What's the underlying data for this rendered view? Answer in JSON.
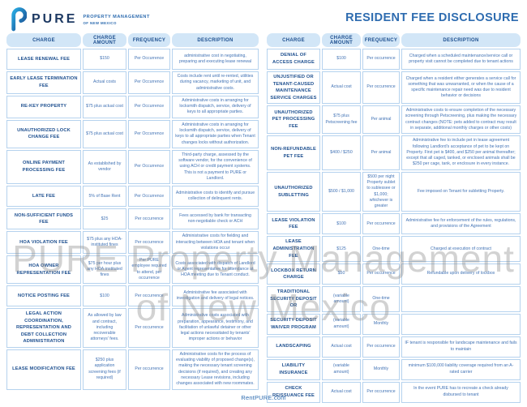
{
  "brand": {
    "name": "PURE",
    "tagline_line1": "PROPERTY MANAGEMENT",
    "tagline_line2": "OF NEW MEXICO"
  },
  "title": "RESIDENT FEE DISCLOSURE",
  "watermark": {
    "line1": "PURE Property Management",
    "line2": "of New Mexico"
  },
  "footer": {
    "url": "RentPURE.com"
  },
  "colors": {
    "accent_blue": "#2e6cb0",
    "dark_blue": "#1d4f8f",
    "navy": "#1e3a63",
    "pill_background": "#d2e6f7",
    "cell_border": "#b5d2ee",
    "body_text_blue": "#4273b5",
    "watermark_gray": "#8a8a8a"
  },
  "columns": [
    "CHARGE",
    "CHARGE AMOUNT",
    "FREQUENCY",
    "DESCRIPTION"
  ],
  "left_table": {
    "rows": [
      {
        "charge": "LEASE RENEWAL FEE",
        "amount": "$150",
        "frequency": "Per Occurrence",
        "description": "administrative cost in negotiating, preparing and executing lease renewal"
      },
      {
        "charge": "EARLY LEASE TERMINATION FEE",
        "amount": "Actual costs",
        "frequency": "Per Occurrence",
        "description": "Costs include rent until re-rented, utilities during vacancy, marketing of unit, and administrative costs."
      },
      {
        "charge": "RE-KEY PROPERTY",
        "amount": "$75 plus actual cost",
        "frequency": "Per Occurrence",
        "description": "Administrative costs in arranging for locksmith dispatch, service, delivery of keys to all appropriate parties."
      },
      {
        "charge": "UNAUTHORIZED LOCK CHANGE FEE",
        "amount": "$75 plus actual cost",
        "frequency": "Per Occurrence",
        "description": "Administrative costs in arranging for locksmith dispatch, service, delivery of keys to all appropriate parties when Tenant changes locks without authorization."
      },
      {
        "charge": "ONLINE PAYMENT PROCESSING FEE",
        "amount": "As established by vendor",
        "frequency": "Per Occurrence",
        "description": "Third-party charge, assessed by the software vendor, for the convenience of using ACH or credit payment systems. This is not a payment to PURE or Landlord."
      },
      {
        "charge": "LATE FEE",
        "amount": "5% of Base Rent",
        "frequency": "Per Occurrence",
        "description": "Administrative costs to identify and pursue collection of delinquent rents."
      },
      {
        "charge": "NON-SUFFICIENT FUNDS FEE",
        "amount": "$25",
        "frequency": "Per occurrence",
        "description": "Fees accessed by bank for transacting non-negotiable check or ACH"
      },
      {
        "charge": "HOA VIOLATION FEE",
        "amount": "$75 plus any HOA-instituted fines",
        "frequency": "Per occurrence",
        "description": "Administrative costs for fielding and interacting between HOA and tenant when violations occur"
      },
      {
        "charge": "HOA OWNER REPRESENTATION FEE",
        "amount": "$75 per hour plus any HOA-instituted fines",
        "frequency": "Per PURE employee required to attend, per occurrence",
        "description": "Costs associated with dispatch of Landlord or Agent representative for attendance at HOA meeting due to Tenant conduct."
      },
      {
        "charge": "NOTICE POSTING FEE",
        "amount": "$100",
        "frequency": "Per occurrence",
        "description": "Administrative fee associated with investigation and delivery of legal notices."
      },
      {
        "charge": "LEGAL ACTION COORDINATION, REPRESENTATION AND DEBT COLLECTION ADMINISTRATION",
        "amount": "As allowed by law and contract, including recoverable attorneys' fees.",
        "frequency": "Per occurrence",
        "description": "Administrative costs associated with preparation, appearance, testimony, and facilitation of unlawful detainer or other legal actions necessitated by tenants' improper actions or behavior"
      },
      {
        "charge": "LEASE MODIFICATION FEE",
        "amount": "$250 plus application screening fees (if required)",
        "frequency": "Per occurrence",
        "description": "Administrative costs for the process of evaluating viability of proposed change(s), making the necessary tenant screening decisions (if required), and creating any necessary Lease revisions, including changes associated with new roommates."
      }
    ]
  },
  "right_table": {
    "rows": [
      {
        "charge": "DENIAL OF ACCESS CHARGE",
        "amount": "$100",
        "frequency": "Per occurrence",
        "description": "Charged when a scheduled maintenance/service call or property visit cannot be completed due to tenant actions"
      },
      {
        "charge": "UNJUSTIFIED OR TENANT-CAUSED MAINTENANCE SERVICE CHARGES",
        "amount": "Actual cost",
        "frequency": "Per occurrence",
        "description": "Charged when a resident either generates a service call for something that was unwarranted, or when the cause of a specific maintenance repair need was due to resident behavior or decisions"
      },
      {
        "charge": "UNAUTHORIZED PET PROCESSING FEE",
        "amount": "$75 plus Petscreening fee",
        "frequency": "Per animal",
        "description": "Administrative costs to ensure completion of the necessary screening through Petscreening, plus making the necessary contract changes (NOTE: pets added to contract may result in separate, additional monthly charges or other costs)"
      },
      {
        "charge": "NON-REFUNDABLE PET FEE",
        "amount": "$400 / $250",
        "frequency": "Per animal",
        "description": "Administrative fee to include pet in lease agreement following Landlord's acceptance of pet to be kept on Property. First pet is $400, and $250 per animal thereafter; except that all caged, tanked, or enclosed animals shall be $250 per cage, tank, or enclosure in every instance."
      },
      {
        "charge": "UNAUTHORIZED SUBLETTING",
        "amount": "$500 / $1,000",
        "frequency": "$500 per night Property sublet to sublessee or $1,000; whichever is greater",
        "description": "Fee imposed on Tenant for subletting Property."
      },
      {
        "charge": "LEASE VIOLATION FEE",
        "amount": "$100",
        "frequency": "Per occurrence",
        "description": "Administrative fee for enforcement of the rules, regulations, and provisions of the Agreement"
      },
      {
        "charge": "LEASE ADMINISTRATION FEE",
        "amount": "$125",
        "frequency": "One-time",
        "description": "Charged at execution of contract"
      },
      {
        "charge": "LOCKBOX RETURN CHARGE",
        "amount": "$50",
        "frequency": "Per occurrence",
        "description": "Refundable upon delivery of lockbox"
      },
      {
        "charge": "TRADITIONAL SECURITY DEPOSIT OR",
        "amount": "(variable amount)",
        "frequency": "One-time",
        "description": ""
      },
      {
        "charge": "SECURITY DEPOSIT WAIVER PROGRAM",
        "amount": "(variable amount)",
        "frequency": "Monthly",
        "description": ""
      },
      {
        "charge": "LANDSCAPING",
        "amount": "Actual cost",
        "frequency": "Per occurrence",
        "description": "IF tenant is responsible for landscape maintenance and fails to maintain"
      },
      {
        "charge": "LIABILITY INSURANCE",
        "amount": "(variable amount)",
        "frequency": "Monthly",
        "description": "minimum $100,000 liability coverage required from an A-rated carrier"
      },
      {
        "charge": "CHECK REISSUANCE FEE",
        "amount": "Actual cost",
        "frequency": "Per occurrence",
        "description": "In the event PURE has to recreate a check already disbursed to tenant"
      }
    ]
  }
}
